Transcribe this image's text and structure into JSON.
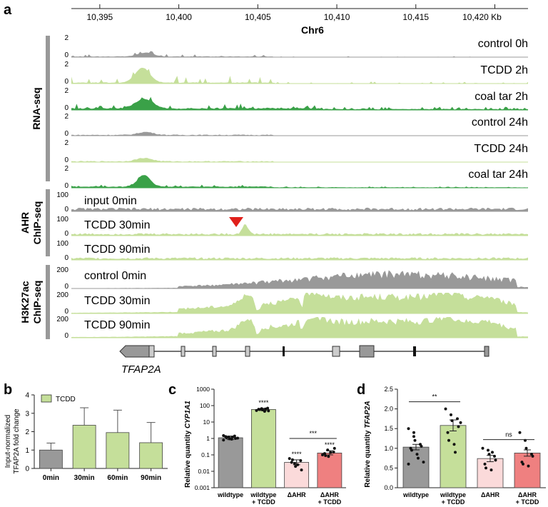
{
  "panel_a": {
    "label": "a",
    "genome_axis": {
      "ticks": [
        "10,395",
        "10,400",
        "10,405",
        "10,410",
        "10,415",
        "10,420 Kb"
      ],
      "chrom": "Chr6"
    },
    "groups": [
      {
        "label": "RNA-seq"
      },
      {
        "label_lines": [
          "AHR",
          "ChIP-seq"
        ]
      },
      {
        "label_lines": [
          "H3K27ac",
          "ChIP-seq"
        ]
      }
    ],
    "tracks": [
      {
        "label": "control 0h",
        "ymax": "2",
        "ymin": "0",
        "color": "#999999",
        "profile": "rna_ctrl0"
      },
      {
        "label": "TCDD 2h",
        "ymax": "2",
        "ymin": "0",
        "color": "#c5df9a",
        "profile": "rna_tcdd2"
      },
      {
        "label": "coal tar 2h",
        "ymax": "2",
        "ymin": "0",
        "color": "#3aa148",
        "profile": "rna_coal2"
      },
      {
        "label": "control 24h",
        "ymax": "2",
        "ymin": "0",
        "color": "#999999",
        "profile": "rna_ctrl24"
      },
      {
        "label": "TCDD 24h",
        "ymax": "2",
        "ymin": "0",
        "color": "#c5df9a",
        "profile": "rna_tcdd24"
      },
      {
        "label": "coal tar 24h",
        "ymax": "2",
        "ymin": "0",
        "color": "#3aa148",
        "profile": "rna_coal24"
      },
      {
        "label": "input 0min",
        "ymax": "100",
        "ymin": "0",
        "color": "#999999",
        "profile": "chip_input"
      },
      {
        "label": "TCDD 30min",
        "ymax": "100",
        "ymin": "0",
        "color": "#c5df9a",
        "profile": "chip_tcdd30"
      },
      {
        "label": "TCDD 90min",
        "ymax": "100",
        "ymin": "0",
        "color": "#c5df9a",
        "profile": "chip_tcdd90"
      },
      {
        "label": "control 0min",
        "ymax": "200",
        "ymin": "0",
        "color": "#999999",
        "profile": "k27_ctrl"
      },
      {
        "label": "TCDD 30min",
        "ymax": "200",
        "ymin": "0",
        "color": "#c5df9a",
        "profile": "k27_tcdd30"
      },
      {
        "label": "TCDD 90min",
        "ymax": "200",
        "ymin": "0",
        "color": "#c5df9a",
        "profile": "k27_tcdd90"
      }
    ],
    "marker_color": "#e0201b",
    "gene": "TFAP2A"
  },
  "panel_b": {
    "label": "b",
    "chart_data": {
      "type": "bar",
      "categories": [
        "0min",
        "30min",
        "60min",
        "90min"
      ],
      "values": [
        1.0,
        2.35,
        1.95,
        1.4
      ],
      "errors": [
        0.38,
        0.95,
        1.22,
        1.1
      ],
      "colors": [
        "#999999",
        "#c5df9a",
        "#c5df9a",
        "#c5df9a"
      ],
      "ylabel_lines": [
        "Input-normalized",
        "TFAP2A fold change"
      ],
      "ylim": [
        0,
        4
      ],
      "yticks": [
        "0",
        "1",
        "2",
        "3",
        "4"
      ],
      "legend": "TCDD",
      "legend_color": "#c5df9a"
    }
  },
  "panel_c": {
    "label": "c",
    "chart_data": {
      "type": "bar",
      "scale": "log",
      "categories": [
        [
          "wildtype"
        ],
        [
          "wildtype",
          "+ TCDD"
        ],
        [
          "ΔAHR"
        ],
        [
          "ΔAHR",
          "+ TCDD"
        ]
      ],
      "values": [
        1.1,
        58,
        0.035,
        0.13
      ],
      "err_low": [
        0.85,
        50,
        0.025,
        0.1
      ],
      "err_high": [
        1.4,
        68,
        0.05,
        0.18
      ],
      "points": [
        [
          0.8,
          1.2,
          0.95,
          1.4,
          1.0,
          1.3,
          1.1,
          0.9,
          1.2,
          1.05,
          1.5
        ],
        [
          50,
          65,
          55,
          70,
          48,
          60,
          58,
          45,
          62
        ],
        [
          0.06,
          0.03,
          0.02,
          0.045,
          0.012,
          0.035,
          0.05,
          0.025
        ],
        [
          0.1,
          0.2,
          0.08,
          0.15,
          0.25,
          0.12,
          0.09,
          0.14
        ]
      ],
      "colors": [
        "#999999",
        "#c5df9a",
        "#fbdada",
        "#ef8080"
      ],
      "ylabel_prefix": "Relative quantity",
      "ylabel_gene": "CYP1A1",
      "yticks": [
        "0.001",
        "0.01",
        "0.1",
        "1",
        "10",
        "100",
        "1000"
      ],
      "ylim": [
        0.001,
        1000
      ],
      "bar_sig": [
        "",
        "****",
        "****",
        "****"
      ],
      "bracket": {
        "from": 2,
        "to": 3,
        "label": "***",
        "y": 1.0
      }
    }
  },
  "panel_d": {
    "label": "d",
    "chart_data": {
      "type": "bar",
      "categories": [
        [
          "wildtype"
        ],
        [
          "wildtype",
          "+ TCDD"
        ],
        [
          "ΔAHR"
        ],
        [
          "ΔAHR",
          "+ TCDD"
        ]
      ],
      "values": [
        1.03,
        1.58,
        0.74,
        0.88
      ],
      "errors": [
        0.07,
        0.14,
        0.08,
        0.08
      ],
      "points": [
        [
          1.5,
          1.3,
          1.2,
          1.1,
          1.05,
          1.0,
          0.95,
          0.85,
          0.75,
          0.65,
          0.6,
          1.4
        ],
        [
          2.0,
          1.85,
          1.7,
          1.75,
          1.55,
          1.4,
          1.2,
          1.1,
          0.9,
          1.65
        ],
        [
          1.0,
          0.95,
          0.85,
          0.8,
          0.7,
          0.6,
          0.5,
          0.45,
          0.9
        ],
        [
          1.4,
          1.2,
          1.0,
          0.85,
          0.8,
          0.65,
          0.6,
          0.55
        ]
      ],
      "colors": [
        "#999999",
        "#c5df9a",
        "#fbdada",
        "#ef8080"
      ],
      "ylabel_prefix": "Relative quantity",
      "ylabel_gene": "TFAP2A",
      "yticks": [
        "0.0",
        "0.5",
        "1.0",
        "1.5",
        "2.0",
        "2.5"
      ],
      "ylim": [
        0,
        2.5
      ],
      "brackets": [
        {
          "from": 0,
          "to": 1,
          "label": "**",
          "y": 2.18
        },
        {
          "from": 2,
          "to": 3,
          "label": "ns",
          "y": 1.22
        }
      ]
    }
  }
}
